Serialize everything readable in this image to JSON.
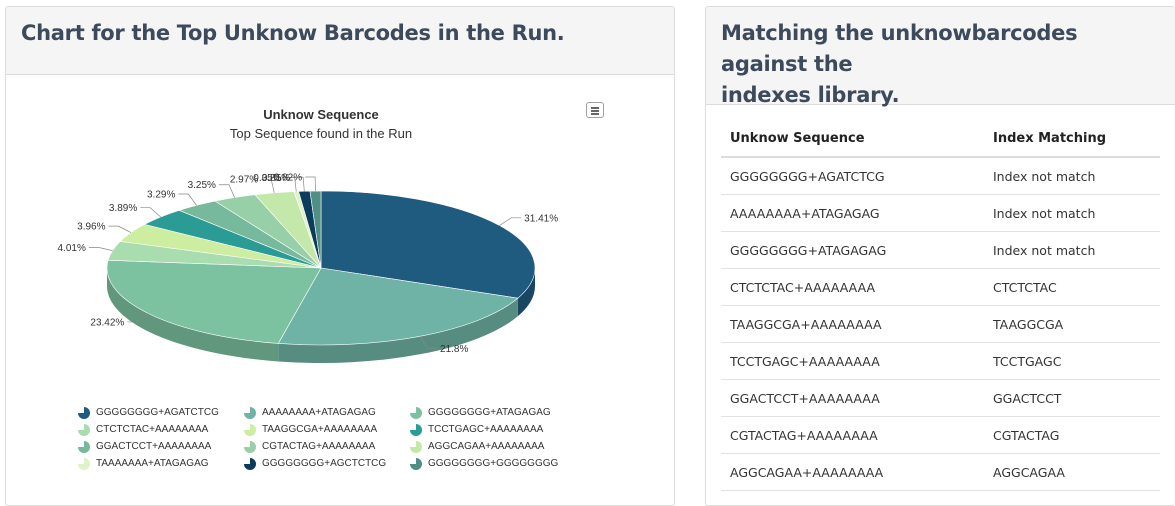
{
  "left_panel": {
    "title": "Chart for the Top Unknow Barcodes in the Run."
  },
  "right_panel": {
    "title_line1": "Matching the unknowbarcodes against the",
    "title_line2": "indexes library.",
    "headers": [
      "Unknow Sequence",
      "Index Matching"
    ],
    "rows": [
      [
        "GGGGGGGG+AGATCTCG",
        "Index not match"
      ],
      [
        "AAAAAAAA+ATAGAGAG",
        "Index not match"
      ],
      [
        "GGGGGGGG+ATAGAGAG",
        "Index not match"
      ],
      [
        "CTCTCTAC+AAAAAAAA",
        "CTCTCTAC"
      ],
      [
        "TAAGGCGA+AAAAAAAA",
        "TAAGGCGA"
      ],
      [
        "TCCTGAGC+AAAAAAAA",
        "TCCTGAGC"
      ],
      [
        "GGACTCCT+AAAAAAAA",
        "GGACTCCT"
      ],
      [
        "CGTACTAG+AAAAAAAA",
        "CGTACTAG"
      ],
      [
        "AGGCAGAA+AAAAAAAA",
        "AGGCAGAA"
      ]
    ]
  },
  "chart_data": {
    "type": "pie",
    "title": "Unknow Sequence",
    "subtitle": "Top Sequence found in the Run",
    "legend_placement": "bottom",
    "slices": [
      {
        "name": "GGGGGGGG+AGATCTCG",
        "value": 31.41,
        "label": "31.41%",
        "color": "#1f5a7f"
      },
      {
        "name": "AAAAAAAA+ATAGAGAG",
        "value": 21.8,
        "label": "21.8%",
        "color": "#6fb3a6"
      },
      {
        "name": "GGGGGGGG+ATAGAGAG",
        "value": 23.42,
        "label": "23.42%",
        "color": "#7cc2a0"
      },
      {
        "name": "CTCTCTAC+AAAAAAAA",
        "value": 4.01,
        "label": "4.01%",
        "color": "#a9dcae"
      },
      {
        "name": "TAAGGCGA+AAAAAAAA",
        "value": 3.96,
        "label": "3.96%",
        "color": "#cdeda0"
      },
      {
        "name": "TCCTGAGC+AAAAAAAA",
        "value": 3.89,
        "label": "3.89%",
        "color": "#2a9c95"
      },
      {
        "name": "GGACTCCT+AAAAAAAA",
        "value": 3.29,
        "label": "3.29%",
        "color": "#77b99c"
      },
      {
        "name": "CGTACTAG+AAAAAAAA",
        "value": 3.25,
        "label": "3.25%",
        "color": "#97d0a8"
      },
      {
        "name": "AGGCAGAA+AAAAAAAA",
        "value": 2.97,
        "label": "2.97%",
        "color": "#c3e8a9"
      },
      {
        "name": "TAAAAAAA+ATAGAGAG",
        "value": 0.35,
        "label": "0.35%",
        "color": "#dff2c8"
      },
      {
        "name": "GGGGGGGG+AGCTCTCG",
        "value": 0.85,
        "label": "0.85%",
        "color": "#0c3c5c"
      },
      {
        "name": "GGGGGGGG+GGGGGGGG",
        "value": 0.82,
        "label": "0.82%",
        "color": "#4f8f86"
      }
    ]
  }
}
